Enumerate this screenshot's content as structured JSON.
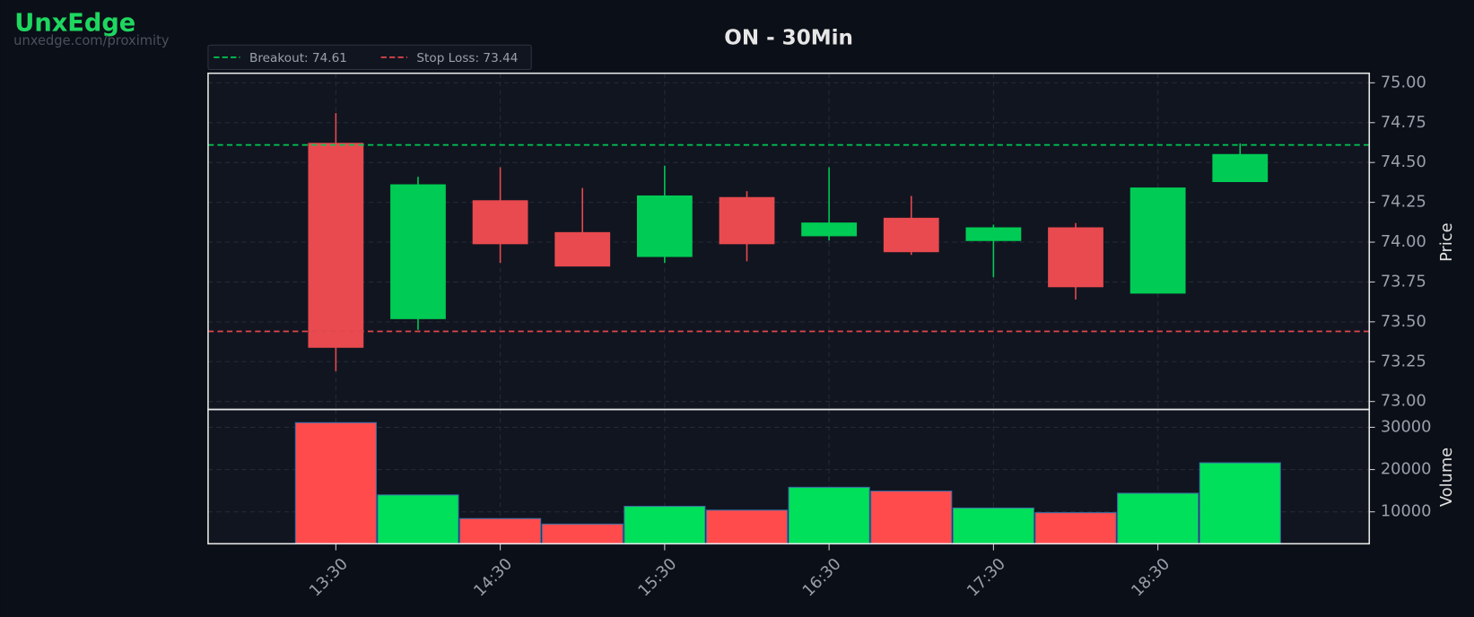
{
  "brand": "UnxEdge",
  "brand_url": "unxedge.com/proximity",
  "chart_data": [
    {
      "type": "candlestick",
      "title": "ON - 30Min",
      "y_label": "Price",
      "categories": [
        "13:30",
        null,
        "14:30",
        null,
        "15:30",
        null,
        "16:30",
        null,
        "17:30",
        null,
        "18:30",
        null
      ],
      "open": [
        74.62,
        73.52,
        74.26,
        74.06,
        73.91,
        74.28,
        74.04,
        74.15,
        74.01,
        74.09,
        73.68,
        74.38
      ],
      "high": [
        74.81,
        74.41,
        74.47,
        74.34,
        74.48,
        74.32,
        74.47,
        74.29,
        74.11,
        74.12,
        74.34,
        74.62
      ],
      "low": [
        73.19,
        73.45,
        73.87,
        73.85,
        73.87,
        73.88,
        74.01,
        73.92,
        73.78,
        73.64,
        73.68,
        74.38
      ],
      "close": [
        73.34,
        74.36,
        73.99,
        73.85,
        74.29,
        73.99,
        74.12,
        73.94,
        74.09,
        73.72,
        74.34,
        74.55
      ],
      "up_color": "#00cc55",
      "down_color": "#e84a4f",
      "ylim": [
        72.95,
        75.06
      ],
      "yticks": [
        {
          "value": 73,
          "label": "73.00"
        },
        73.25,
        {
          "value": 73.5,
          "label": "73.50"
        },
        73.75,
        {
          "value": 74,
          "label": "74.00"
        },
        74.25,
        {
          "value": 74.5,
          "label": "74.50"
        },
        74.75,
        {
          "value": 75,
          "label": "75.00"
        }
      ],
      "grid": true,
      "legend": "upper left",
      "levels": [
        {
          "label": "Breakout: 74.61",
          "value": 74.61,
          "color": "#00c853"
        },
        {
          "label": "Stop Loss: 73.44",
          "value": 73.44,
          "color": "#e0474c"
        }
      ]
    },
    {
      "type": "bar",
      "y_label": "Volume",
      "values": [
        31100,
        14000,
        8400,
        7100,
        11300,
        10400,
        15800,
        14900,
        10900,
        9800,
        14400,
        21600
      ],
      "colors": [
        "#ff4b4b",
        "#00e05a",
        "#ff4b4b",
        "#ff4b4b",
        "#00e05a",
        "#ff4b4b",
        "#00e05a",
        "#ff4b4b",
        "#00e05a",
        "#ff4b4b",
        "#00e05a",
        "#00e05a"
      ],
      "ylim": [
        2444,
        34222
      ],
      "yticks": [
        10000,
        20000,
        30000
      ],
      "grid": true
    }
  ]
}
